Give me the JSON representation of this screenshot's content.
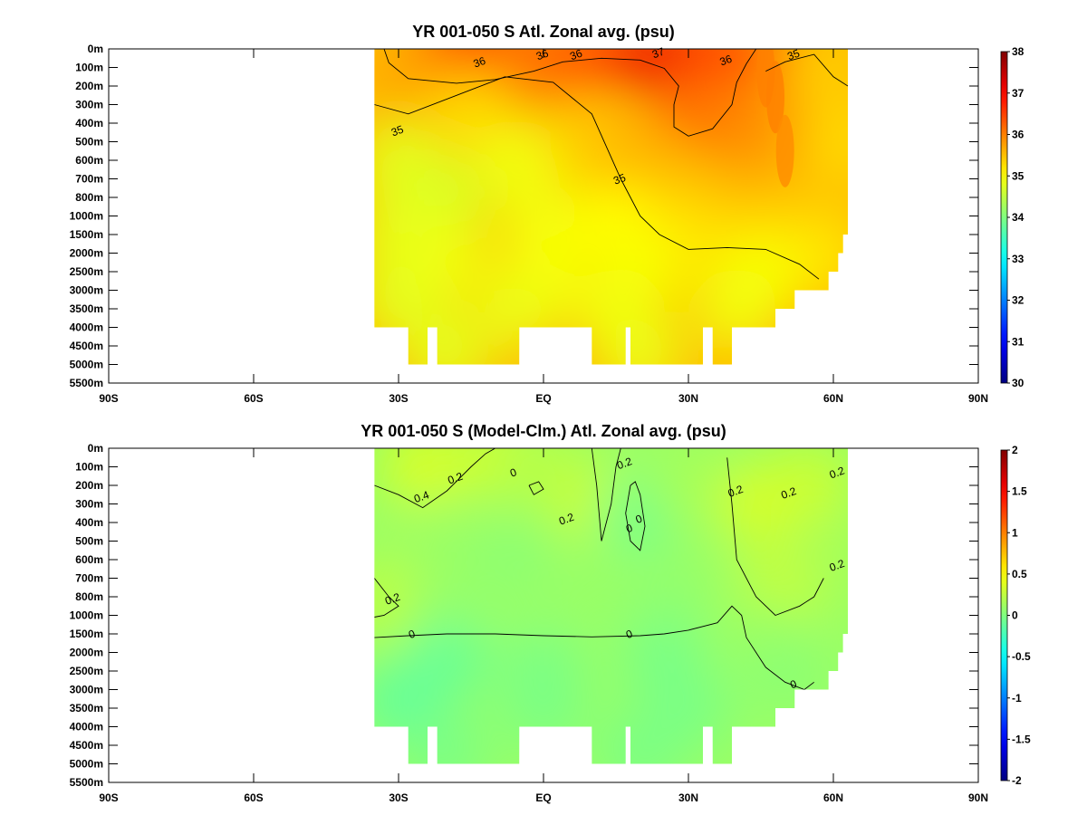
{
  "chart_data": [
    {
      "type": "heatmap",
      "title": "YR 001-050 S Atl. Zonal avg. (psu)",
      "xlabel": "",
      "ylabel": "",
      "x_ticks": [
        "90S",
        "60S",
        "30S",
        "EQ",
        "30N",
        "60N",
        "90N"
      ],
      "x_tick_values": [
        -90,
        -60,
        -30,
        0,
        30,
        60,
        90
      ],
      "xlim": [
        -90,
        90
      ],
      "y_ticks": [
        "0m",
        "100m",
        "200m",
        "300m",
        "400m",
        "500m",
        "600m",
        "700m",
        "800m",
        "1000m",
        "1500m",
        "2000m",
        "2500m",
        "3000m",
        "3500m",
        "4000m",
        "4500m",
        "5000m",
        "5500m"
      ],
      "y_tick_values": [
        0,
        100,
        200,
        300,
        400,
        500,
        600,
        700,
        800,
        1000,
        1500,
        2000,
        2500,
        3000,
        3500,
        4000,
        4500,
        5000,
        5500
      ],
      "colorbar": {
        "min": 30,
        "max": 38,
        "ticks": [
          "38",
          "37",
          "36",
          "35",
          "34",
          "33",
          "32",
          "31",
          "30"
        ]
      },
      "contours": [
        {
          "level": 36,
          "label": "36",
          "points": [
            [
              -33,
              0
            ],
            [
              -32,
              75
            ],
            [
              -28,
              160
            ],
            [
              -18,
              185
            ],
            [
              -10,
              165
            ],
            [
              -2,
              120
            ],
            [
              4,
              70
            ],
            [
              12,
              50
            ],
            [
              20,
              60
            ],
            [
              25,
              105
            ],
            [
              28,
              200
            ],
            [
              27,
              300
            ],
            [
              27,
              420
            ],
            [
              30,
              470
            ],
            [
              35,
              430
            ],
            [
              39,
              300
            ],
            [
              40,
              180
            ],
            [
              42,
              80
            ],
            [
              44,
              0
            ]
          ]
        },
        {
          "level": 35,
          "label": "35",
          "points": [
            [
              -35,
              300
            ],
            [
              -28,
              350
            ],
            [
              -18,
              250
            ],
            [
              -8,
              150
            ],
            [
              2,
              180
            ],
            [
              10,
              350
            ],
            [
              16,
              700
            ],
            [
              20,
              1000
            ],
            [
              24,
              1500
            ],
            [
              30,
              1900
            ],
            [
              38,
              1850
            ],
            [
              46,
              1900
            ],
            [
              53,
              2300
            ],
            [
              57,
              2700
            ]
          ]
        },
        {
          "level": 35,
          "label": "35",
          "points": [
            [
              46,
              120
            ],
            [
              50,
              70
            ],
            [
              56,
              30
            ],
            [
              60,
              150
            ],
            [
              63,
              200
            ]
          ]
        }
      ],
      "contour_labels": [
        {
          "text": "36",
          "x": -13,
          "y": 90
        },
        {
          "text": "36",
          "x": 0,
          "y": 50
        },
        {
          "text": "36",
          "x": 7,
          "y": 50
        },
        {
          "text": "37",
          "x": 24,
          "y": 40
        },
        {
          "text": "36",
          "x": 38,
          "y": 80
        },
        {
          "text": "35",
          "x": 52,
          "y": 50
        },
        {
          "text": "35",
          "x": -30,
          "y": 460
        },
        {
          "text": "35",
          "x": 16,
          "y": 720
        }
      ],
      "field_points": [
        {
          "x": -18,
          "y": 0,
          "v": 36.8
        },
        {
          "x": -10,
          "y": 20,
          "v": 36.9
        },
        {
          "x": -22,
          "y": 100,
          "v": 36.3
        },
        {
          "x": -28,
          "y": 200,
          "v": 35.7
        },
        {
          "x": -5,
          "y": 150,
          "v": 36.0
        },
        {
          "x": 5,
          "y": 20,
          "v": 36.2
        },
        {
          "x": 15,
          "y": 20,
          "v": 36.4
        },
        {
          "x": 25,
          "y": 50,
          "v": 37.2
        },
        {
          "x": 30,
          "y": 120,
          "v": 37.1
        },
        {
          "x": 35,
          "y": 40,
          "v": 36.6
        },
        {
          "x": 32,
          "y": 300,
          "v": 36.2
        },
        {
          "x": 40,
          "y": 400,
          "v": 36.0
        },
        {
          "x": 48,
          "y": 30,
          "v": 36.2
        },
        {
          "x": 50,
          "y": 400,
          "v": 35.8
        },
        {
          "x": 58,
          "y": 100,
          "v": 35.4
        },
        {
          "x": 62,
          "y": 500,
          "v": 35.3
        },
        {
          "x": -15,
          "y": 350,
          "v": 35.3
        },
        {
          "x": -30,
          "y": 600,
          "v": 34.8
        },
        {
          "x": -20,
          "y": 800,
          "v": 34.7
        },
        {
          "x": -5,
          "y": 600,
          "v": 34.9
        },
        {
          "x": 10,
          "y": 500,
          "v": 35.4
        },
        {
          "x": 20,
          "y": 600,
          "v": 35.6
        },
        {
          "x": 25,
          "y": 800,
          "v": 35.5
        },
        {
          "x": 35,
          "y": 1000,
          "v": 35.5
        },
        {
          "x": 45,
          "y": 900,
          "v": 35.6
        },
        {
          "x": 55,
          "y": 1000,
          "v": 35.5
        },
        {
          "x": -30,
          "y": 1500,
          "v": 34.8
        },
        {
          "x": 0,
          "y": 1200,
          "v": 34.9
        },
        {
          "x": 15,
          "y": 1200,
          "v": 35.0
        },
        {
          "x": 30,
          "y": 1600,
          "v": 35.2
        },
        {
          "x": 45,
          "y": 1700,
          "v": 35.3
        },
        {
          "x": 58,
          "y": 2000,
          "v": 35.2
        },
        {
          "x": -20,
          "y": 2200,
          "v": 34.9
        },
        {
          "x": 0,
          "y": 2500,
          "v": 34.95
        },
        {
          "x": 20,
          "y": 2500,
          "v": 34.95
        },
        {
          "x": 45,
          "y": 2600,
          "v": 34.95
        },
        {
          "x": -30,
          "y": 3200,
          "v": 34.8
        },
        {
          "x": -5,
          "y": 3500,
          "v": 34.85
        },
        {
          "x": 15,
          "y": 3500,
          "v": 34.9
        },
        {
          "x": 40,
          "y": 3500,
          "v": 34.9
        },
        {
          "x": -20,
          "y": 4700,
          "v": 34.8
        },
        {
          "x": 20,
          "y": 4700,
          "v": 34.85
        }
      ],
      "wedges": [
        {
          "x": 46,
          "y": 120,
          "v": 36.0
        },
        {
          "x": 48,
          "y": 260,
          "v": 36.0
        },
        {
          "x": 50,
          "y": 550,
          "v": 35.9
        }
      ]
    },
    {
      "type": "heatmap",
      "title": "YR 001-050 S (Model-Clm.) Atl. Zonal avg. (psu)",
      "xlabel": "",
      "ylabel": "",
      "x_ticks": [
        "90S",
        "60S",
        "30S",
        "EQ",
        "30N",
        "60N",
        "90N"
      ],
      "x_tick_values": [
        -90,
        -60,
        -30,
        0,
        30,
        60,
        90
      ],
      "xlim": [
        -90,
        90
      ],
      "y_ticks": [
        "0m",
        "100m",
        "200m",
        "300m",
        "400m",
        "500m",
        "600m",
        "700m",
        "800m",
        "1000m",
        "1500m",
        "2000m",
        "2500m",
        "3000m",
        "3500m",
        "4000m",
        "4500m",
        "5000m",
        "5500m"
      ],
      "y_tick_values": [
        0,
        100,
        200,
        300,
        400,
        500,
        600,
        700,
        800,
        1000,
        1500,
        2000,
        2500,
        3000,
        3500,
        4000,
        4500,
        5000,
        5500
      ],
      "colorbar": {
        "min": -2,
        "max": 2,
        "ticks": [
          "2",
          "1.5",
          "1",
          "0.5",
          "0",
          "-0.5",
          "-1",
          "-1.5",
          "-2"
        ]
      },
      "contours": [
        {
          "level": 0,
          "label": "0",
          "points": [
            [
              -35,
              1600
            ],
            [
              -28,
              1550
            ],
            [
              -20,
              1500
            ],
            [
              -10,
              1500
            ],
            [
              0,
              1550
            ],
            [
              10,
              1580
            ],
            [
              20,
              1550
            ],
            [
              25,
              1500
            ],
            [
              30,
              1400
            ],
            [
              36,
              1200
            ],
            [
              39,
              900
            ],
            [
              41,
              1000
            ],
            [
              42,
              1600
            ],
            [
              46,
              2400
            ],
            [
              50,
              2800
            ],
            [
              54,
              3000
            ],
            [
              56,
              2800
            ]
          ]
        },
        {
          "level": 0.2,
          "label": "0.2",
          "points": [
            [
              -35,
              700
            ],
            [
              -32,
              800
            ],
            [
              -30,
              900
            ],
            [
              -33,
              1000
            ],
            [
              -35,
              1050
            ]
          ]
        },
        {
          "level": 0.2,
          "label": "0.2",
          "points": [
            [
              -35,
              200
            ],
            [
              -30,
              250
            ],
            [
              -25,
              320
            ],
            [
              -20,
              230
            ],
            [
              -15,
              100
            ],
            [
              -12,
              30
            ],
            [
              -10,
              0
            ]
          ]
        },
        {
          "level": 0,
          "label": "0",
          "points": [
            [
              18,
              200
            ],
            [
              17,
              350
            ],
            [
              18,
              500
            ],
            [
              20,
              550
            ],
            [
              21,
              420
            ],
            [
              20,
              250
            ],
            [
              19,
              180
            ],
            [
              18,
              200
            ]
          ]
        },
        {
          "level": 0.2,
          "label": "0.2",
          "points": [
            [
              10,
              0
            ],
            [
              11,
              200
            ],
            [
              12,
              500
            ],
            [
              14,
              300
            ],
            [
              15,
              100
            ],
            [
              16,
              0
            ]
          ]
        },
        {
          "level": 0.2,
          "label": "0.2",
          "points": [
            [
              38,
              50
            ],
            [
              39,
              300
            ],
            [
              40,
              600
            ],
            [
              44,
              800
            ],
            [
              48,
              1000
            ],
            [
              53,
              900
            ],
            [
              56,
              800
            ],
            [
              58,
              700
            ]
          ]
        },
        {
          "level": 0.2,
          "label": "0.2",
          "points": [
            [
              -3,
              200
            ],
            [
              -2,
              250
            ],
            [
              0,
              220
            ],
            [
              -1,
              180
            ],
            [
              -3,
              200
            ]
          ]
        }
      ],
      "contour_labels": [
        {
          "text": "0.4",
          "x": -25,
          "y": 280
        },
        {
          "text": "0.2",
          "x": -18,
          "y": 180
        },
        {
          "text": "0",
          "x": -6,
          "y": 150
        },
        {
          "text": "0.2",
          "x": 5,
          "y": 400
        },
        {
          "text": "0.2",
          "x": 17,
          "y": 100
        },
        {
          "text": "0",
          "x": 18,
          "y": 450
        },
        {
          "text": "0",
          "x": 20,
          "y": 400
        },
        {
          "text": "0.2",
          "x": 40,
          "y": 250
        },
        {
          "text": "0.2",
          "x": 51,
          "y": 260
        },
        {
          "text": "0.2",
          "x": 61,
          "y": 150
        },
        {
          "text": "0.2",
          "x": 61,
          "y": 650
        },
        {
          "text": "0.2",
          "x": -31,
          "y": 860
        },
        {
          "text": "0",
          "x": -27,
          "y": 1600
        },
        {
          "text": "0",
          "x": 18,
          "y": 1600
        },
        {
          "text": "0",
          "x": 52,
          "y": 2950
        }
      ],
      "field_points": [
        {
          "x": -25,
          "y": 100,
          "v": 0.35
        },
        {
          "x": -10,
          "y": 50,
          "v": 0.3
        },
        {
          "x": 0,
          "y": 100,
          "v": 0.2
        },
        {
          "x": 10,
          "y": 300,
          "v": 0.3
        },
        {
          "x": 20,
          "y": 350,
          "v": -0.05
        },
        {
          "x": 30,
          "y": 200,
          "v": 0.15
        },
        {
          "x": 45,
          "y": 300,
          "v": 0.35
        },
        {
          "x": 55,
          "y": 200,
          "v": 0.3
        },
        {
          "x": 60,
          "y": 600,
          "v": 0.15
        },
        {
          "x": -20,
          "y": 500,
          "v": 0.1
        },
        {
          "x": -5,
          "y": 600,
          "v": 0.05
        },
        {
          "x": 10,
          "y": 700,
          "v": 0.1
        },
        {
          "x": 30,
          "y": 700,
          "v": 0.1
        },
        {
          "x": 48,
          "y": 800,
          "v": 0.3
        },
        {
          "x": -32,
          "y": 850,
          "v": 0.25
        },
        {
          "x": -20,
          "y": 1000,
          "v": 0.1
        },
        {
          "x": 0,
          "y": 1000,
          "v": 0.1
        },
        {
          "x": 25,
          "y": 1200,
          "v": 0.05
        },
        {
          "x": 45,
          "y": 1500,
          "v": 0.12
        },
        {
          "x": -20,
          "y": 2200,
          "v": -0.08
        },
        {
          "x": 0,
          "y": 2500,
          "v": -0.02
        },
        {
          "x": 25,
          "y": 2300,
          "v": -0.03
        },
        {
          "x": 50,
          "y": 2500,
          "v": 0.05
        },
        {
          "x": -30,
          "y": 3300,
          "v": -0.1
        },
        {
          "x": 0,
          "y": 3500,
          "v": -0.02
        },
        {
          "x": 30,
          "y": 3500,
          "v": -0.02
        },
        {
          "x": -20,
          "y": 4700,
          "v": -0.02
        },
        {
          "x": 20,
          "y": 4700,
          "v": -0.02
        }
      ],
      "wedges": []
    }
  ]
}
